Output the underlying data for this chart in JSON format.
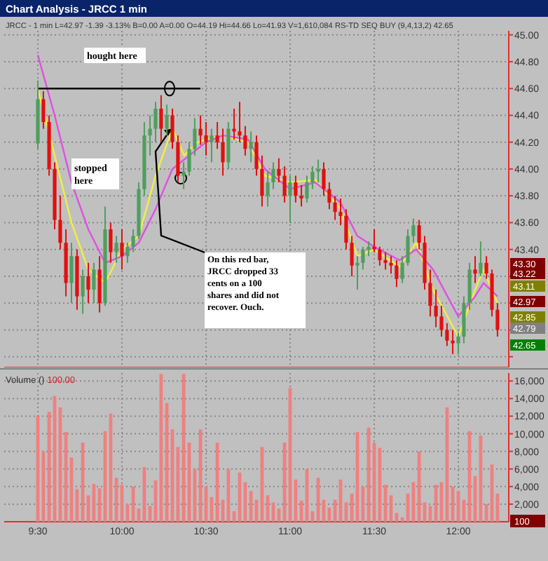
{
  "chart_data": [
    {
      "type": "candlestick",
      "title": "Chart Analysis - JRCC 1 min",
      "subtitle": "JRCC - 1 min L=42.97 -1.39 -3.13% B=0.00 A=0.00 O=44.19 Hi=44.66 Lo=41.93 V=1,610,084 RS-TD SEQ BUY (9,4,13,2) 42.65",
      "x": [
        9.5,
        9.533,
        9.567,
        9.6,
        9.633,
        9.667,
        9.7,
        9.733,
        9.767,
        9.8,
        9.833,
        9.867,
        9.9,
        9.933,
        9.967,
        10,
        10.033,
        10.067,
        10.1,
        10.133,
        10.167,
        10.2,
        10.233,
        10.267,
        10.3,
        10.333,
        10.367,
        10.4,
        10.433,
        10.467,
        10.5,
        10.533,
        10.567,
        10.6,
        10.633,
        10.667,
        10.7,
        10.733,
        10.767,
        10.8,
        10.833,
        10.867,
        10.9,
        10.933,
        10.967,
        11,
        11.033,
        11.067,
        11.1,
        11.133,
        11.167,
        11.2,
        11.233,
        11.267,
        11.3,
        11.333,
        11.367,
        11.4,
        11.433,
        11.467,
        11.5,
        11.533,
        11.567,
        11.6,
        11.633,
        11.667,
        11.7,
        11.733,
        11.767,
        11.8,
        11.833,
        11.867,
        11.9,
        11.933,
        11.967,
        12,
        12.033,
        12.067,
        12.1,
        12.133,
        12.167,
        12.2,
        12.233
      ],
      "ohlc": [
        [
          44.19,
          44.66,
          44.15,
          44.52
        ],
        [
          44.52,
          44.58,
          44.3,
          44.35
        ],
        [
          44.35,
          44.4,
          43.95,
          44
        ],
        [
          44,
          44.05,
          43.55,
          43.62
        ],
        [
          43.62,
          43.8,
          43.4,
          43.45
        ],
        [
          43.45,
          43.55,
          43.05,
          43.15
        ],
        [
          43.15,
          43.45,
          43,
          43.35
        ],
        [
          43.35,
          43.4,
          42.95,
          43.05
        ],
        [
          43.05,
          43.25,
          42.92,
          43.2
        ],
        [
          43.2,
          43.3,
          43,
          43.1
        ],
        [
          43.1,
          43.3,
          43,
          43.25
        ],
        [
          43.25,
          43.35,
          42.93,
          43
        ],
        [
          43,
          43.72,
          42.98,
          43.55
        ],
        [
          43.55,
          43.6,
          43.3,
          43.38
        ],
        [
          43.38,
          43.5,
          43.3,
          43.45
        ],
        [
          43.45,
          43.55,
          43.25,
          43.35
        ],
        [
          43.35,
          43.45,
          43.3,
          43.42
        ],
        [
          43.42,
          43.55,
          43.38,
          43.5
        ],
        [
          43.5,
          43.9,
          43.48,
          43.85
        ],
        [
          43.85,
          44.35,
          43.8,
          44.25
        ],
        [
          44.25,
          44.4,
          44.1,
          44.3
        ],
        [
          44.3,
          44.5,
          44.2,
          44.45
        ],
        [
          44.45,
          44.55,
          44.2,
          44.3
        ],
        [
          44.3,
          44.48,
          44.25,
          44.4
        ],
        [
          44.4,
          44.45,
          44.15,
          44.2
        ],
        [
          44.2,
          44.25,
          43.9,
          43.95
        ],
        [
          43.95,
          44.05,
          43.85,
          43.98
        ],
        [
          43.98,
          44.2,
          43.95,
          44.15
        ],
        [
          44.15,
          44.38,
          44.1,
          44.3
        ],
        [
          44.3,
          44.4,
          44.18,
          44.25
        ],
        [
          44.25,
          44.35,
          44.1,
          44.2
        ],
        [
          44.2,
          44.3,
          44.05,
          44.25
        ],
        [
          44.25,
          44.35,
          44.15,
          44.2
        ],
        [
          44.2,
          44.3,
          43.95,
          44.05
        ],
        [
          44.05,
          44.35,
          44,
          44.3
        ],
        [
          44.3,
          44.45,
          44.22,
          44.28
        ],
        [
          44.28,
          44.5,
          44.2,
          44.25
        ],
        [
          44.25,
          44.32,
          44.1,
          44.15
        ],
        [
          44.15,
          44.28,
          44.05,
          44.2
        ],
        [
          44.2,
          44.25,
          43.95,
          44
        ],
        [
          44,
          44.1,
          43.72,
          43.8
        ],
        [
          43.8,
          43.98,
          43.72,
          43.9
        ],
        [
          43.9,
          44.05,
          43.85,
          44
        ],
        [
          44,
          44.08,
          43.9,
          43.95
        ],
        [
          43.95,
          44.02,
          43.75,
          43.8
        ],
        [
          43.8,
          43.95,
          43.6,
          43.9
        ],
        [
          43.9,
          43.95,
          43.75,
          43.8
        ],
        [
          43.8,
          43.88,
          43.72,
          43.78
        ],
        [
          43.78,
          43.95,
          43.75,
          43.9
        ],
        [
          43.9,
          44.02,
          43.85,
          43.98
        ],
        [
          43.98,
          44.07,
          43.9,
          44
        ],
        [
          44,
          44.05,
          43.8,
          43.85
        ],
        [
          43.85,
          43.9,
          43.7,
          43.75
        ],
        [
          43.75,
          43.8,
          43.62,
          43.68
        ],
        [
          43.68,
          43.78,
          43.58,
          43.65
        ],
        [
          43.65,
          43.7,
          43.4,
          43.45
        ],
        [
          43.45,
          43.5,
          43.2,
          43.28
        ],
        [
          43.28,
          43.35,
          43.1,
          43.3
        ],
        [
          43.3,
          43.42,
          43.25,
          43.4
        ],
        [
          43.4,
          43.46,
          43.35,
          43.42
        ],
        [
          43.42,
          43.55,
          43.38,
          43.4
        ],
        [
          43.4,
          43.42,
          43.28,
          43.32
        ],
        [
          43.32,
          43.38,
          43.25,
          43.3
        ],
        [
          43.3,
          43.35,
          43.22,
          43.28
        ],
        [
          43.28,
          43.32,
          43.12,
          43.18
        ],
        [
          43.18,
          43.35,
          43.15,
          43.3
        ],
        [
          43.3,
          43.55,
          43.28,
          43.5
        ],
        [
          43.5,
          43.63,
          43.45,
          43.58
        ],
        [
          43.58,
          43.62,
          43.4,
          43.45
        ],
        [
          43.45,
          43.5,
          43.1,
          43.15
        ],
        [
          43.15,
          43.25,
          42.9,
          42.98
        ],
        [
          42.98,
          43.1,
          42.82,
          42.9
        ],
        [
          42.9,
          42.98,
          42.75,
          42.8
        ],
        [
          42.8,
          42.85,
          42.68,
          42.72
        ],
        [
          42.72,
          42.8,
          42.62,
          42.7
        ],
        [
          42.7,
          42.78,
          42.62,
          42.75
        ],
        [
          42.75,
          43.05,
          42.7,
          43
        ],
        [
          43,
          43.3,
          42.95,
          43.25
        ],
        [
          43.25,
          43.35,
          43.15,
          43.22
        ],
        [
          43.22,
          43.46,
          43.2,
          43.3
        ],
        [
          43.3,
          43.35,
          43.18,
          43.22
        ],
        [
          43.22,
          43.25,
          42.9,
          42.95
        ],
        [
          42.95,
          43,
          42.75,
          42.8
        ]
      ],
      "series": [
        {
          "type": "line",
          "color": "#f0f040",
          "x": [
            9.5,
            9.6,
            9.7,
            9.8,
            9.9,
            10,
            10.1,
            10.2,
            10.3,
            10.37,
            10.45,
            10.6,
            10.75,
            10.85,
            11,
            11.15,
            11.3,
            11.4,
            11.5,
            11.65,
            11.75,
            11.85,
            12,
            12.1,
            12.15,
            12.233
          ],
          "values": [
            44.6,
            44.1,
            43.6,
            43.25,
            43.15,
            43.4,
            43.5,
            43.95,
            44.3,
            44.1,
            44.2,
            44.25,
            44.2,
            43.95,
            43.9,
            43.92,
            43.7,
            43.35,
            43.4,
            43.27,
            43.45,
            43.1,
            42.75,
            43.1,
            43.25,
            43
          ]
        },
        {
          "type": "line",
          "color": "#e050e0",
          "x": [
            9.5,
            9.6,
            9.7,
            9.8,
            9.9,
            10,
            10.1,
            10.2,
            10.3,
            10.4,
            10.5,
            10.6,
            10.75,
            10.85,
            11,
            11.15,
            11.3,
            11.4,
            11.5,
            11.65,
            11.75,
            11.85,
            12,
            12.1,
            12.15,
            12.233
          ],
          "values": [
            44.85,
            44.4,
            43.9,
            43.55,
            43.3,
            43.35,
            43.45,
            43.7,
            44,
            44.1,
            44.2,
            44.25,
            44.22,
            44,
            43.85,
            43.9,
            43.75,
            43.5,
            43.42,
            43.32,
            43.4,
            43.25,
            42.9,
            43.05,
            43.15,
            43.05
          ]
        }
      ],
      "xlim": [
        9.3,
        12.3
      ],
      "xticks": [
        {
          "value": 9.5,
          "label": null
        },
        {
          "value": 10,
          "label": null
        },
        {
          "value": 10.5,
          "label": null
        },
        {
          "value": 11,
          "label": null
        },
        {
          "value": 11.5,
          "label": null
        },
        {
          "value": 12,
          "label": null
        }
      ],
      "ylim": [
        42.52,
        45.03
      ],
      "yticks": [
        {
          "value": 42.6,
          "label": null
        },
        {
          "value": 42.8,
          "label": null
        },
        {
          "value": 43,
          "label": null
        },
        {
          "value": 43.2,
          "label": null
        },
        {
          "value": 43.4,
          "label": "43.40"
        },
        {
          "value": 43.6,
          "label": "43.60"
        },
        {
          "value": 43.8,
          "label": "43.80"
        },
        {
          "value": 44,
          "label": "44.00"
        },
        {
          "value": 44.2,
          "label": "44.20"
        },
        {
          "value": 44.4,
          "label": "44.40"
        },
        {
          "value": 44.6,
          "label": "44.60"
        },
        {
          "value": 44.8,
          "label": "44.80"
        },
        {
          "value": 45,
          "label": "45.00"
        }
      ],
      "grid": true,
      "tick_labels": "y",
      "annotations": [
        "hought here",
        "stopped here",
        {
          "text": "On this red bar, JRCC dropped 33 cents on a 100 shares and did not recover. Ouch.",
          "x": 10.3,
          "y": 44.3
        },
        "43.30",
        "43.22",
        "43.11",
        "42.97",
        "42.85",
        "42.79",
        "42.65"
      ]
    },
    {
      "type": "bar",
      "title": "Volume ()",
      "subtitle": "100.00",
      "color": "#f08080",
      "x": [
        9.5,
        9.533,
        9.567,
        9.6,
        9.633,
        9.667,
        9.7,
        9.733,
        9.767,
        9.8,
        9.833,
        9.867,
        9.9,
        9.933,
        9.967,
        10,
        10.033,
        10.067,
        10.1,
        10.133,
        10.167,
        10.2,
        10.233,
        10.267,
        10.3,
        10.333,
        10.367,
        10.4,
        10.433,
        10.467,
        10.5,
        10.533,
        10.567,
        10.6,
        10.633,
        10.667,
        10.7,
        10.733,
        10.767,
        10.8,
        10.833,
        10.867,
        10.9,
        10.933,
        10.967,
        11,
        11.033,
        11.067,
        11.1,
        11.133,
        11.167,
        11.2,
        11.233,
        11.267,
        11.3,
        11.333,
        11.367,
        11.4,
        11.433,
        11.467,
        11.5,
        11.533,
        11.567,
        11.6,
        11.633,
        11.667,
        11.7,
        11.733,
        11.767,
        11.8,
        11.833,
        11.867,
        11.9,
        11.933,
        11.967,
        12,
        12.033,
        12.067,
        12.1,
        12.133,
        12.167,
        12.2,
        12.233
      ],
      "values": [
        12000,
        8000,
        12500,
        14300,
        13000,
        10200,
        7300,
        3700,
        9000,
        3000,
        4300,
        3800,
        10300,
        12300,
        5000,
        4200,
        2000,
        4000,
        1500,
        6200,
        1800,
        4700,
        16800,
        13500,
        10500,
        8500,
        16800,
        9000,
        6000,
        10500,
        4000,
        2800,
        9000,
        2500,
        6000,
        1200,
        5600,
        4500,
        3500,
        2500,
        8500,
        3000,
        2200,
        1500,
        9000,
        15200,
        4800,
        2400,
        6000,
        1200,
        5000,
        2500,
        1600,
        2500,
        4800,
        2200,
        3200,
        10200,
        4000,
        10700,
        9000,
        8400,
        4200,
        3000,
        1000,
        500,
        3200,
        4500,
        8000,
        2200,
        1800,
        4200,
        4500,
        13000,
        4000,
        3500,
        2500,
        10300,
        5200,
        9800,
        2000,
        6500,
        3200
      ],
      "xlim": [
        9.3,
        12.3
      ],
      "xticks": [
        {
          "value": 9.5,
          "label": "9:30"
        },
        {
          "value": 10,
          "label": "10:00"
        },
        {
          "value": 10.5,
          "label": "10:30"
        },
        {
          "value": 11,
          "label": "11:00"
        },
        {
          "value": 11.5,
          "label": "11:30"
        },
        {
          "value": 12,
          "label": "12:00"
        }
      ],
      "ylim": [
        0,
        16900
      ],
      "yticks": [
        {
          "value": 2000,
          "label": "2,000"
        },
        {
          "value": 4000,
          "label": "4,000"
        },
        {
          "value": 6000,
          "label": "6,000"
        },
        {
          "value": 8000,
          "label": "8,000"
        },
        {
          "value": 10000,
          "label": "10,000"
        },
        {
          "value": 12000,
          "label": "12,000"
        },
        {
          "value": 14000,
          "label": "14,000"
        },
        {
          "value": 16000,
          "label": "16,000"
        }
      ],
      "grid": true,
      "annotations": [
        "100"
      ]
    }
  ]
}
